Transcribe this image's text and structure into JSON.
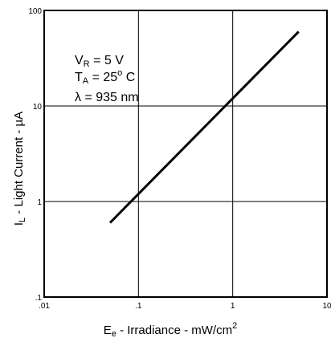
{
  "chart_data": {
    "type": "line",
    "title": "",
    "xlabel": {
      "main": "E",
      "sub": "e",
      "rest": " - Irradiance - mW/cm",
      "sup": "2"
    },
    "ylabel": {
      "main": "I",
      "sub": "L",
      "rest": " - Light Current - µA"
    },
    "x_scale": "log",
    "y_scale": "log",
    "xlim": [
      0.01,
      10
    ],
    "ylim": [
      0.1,
      100
    ],
    "x_ticks": [
      0.01,
      0.1,
      1,
      10
    ],
    "x_tick_labels": [
      ".01",
      ".1",
      "1",
      "10"
    ],
    "y_ticks": [
      0.1,
      1,
      10,
      100
    ],
    "y_tick_labels": [
      ".1",
      "1",
      "10",
      "100"
    ],
    "grid": true,
    "series": [
      {
        "x": [
          0.05,
          5
        ],
        "y": [
          0.6,
          60
        ]
      }
    ],
    "annotations": {
      "line1": {
        "main": "V",
        "sub": "R",
        "rest": " = 5 V"
      },
      "line2": {
        "main": "T",
        "sub": "A",
        "rest": " = 25",
        "sup": "o",
        "tail": " C"
      },
      "line3": {
        "text": "λ = 935 nm"
      }
    }
  }
}
